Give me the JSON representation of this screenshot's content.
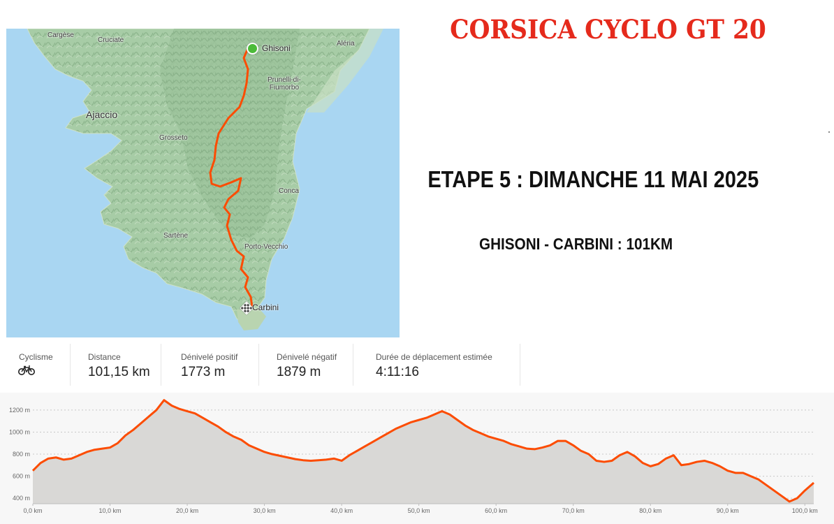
{
  "title": "CORSICA CYCLO GT 20",
  "stage": "ETAPE 5 : DIMANCHE 11 MAI 2025",
  "route": "GHISONI - CARBINI : 101KM",
  "map": {
    "start": "Ghisoni",
    "finish": "Carbini",
    "places": [
      "Cargèse",
      "Cruciate",
      "Aléria",
      "Prunelli-di-\nFiumorbo",
      "Ajaccio",
      "Grosseto",
      "Conca",
      "Sartène",
      "Porto-Vecchio"
    ],
    "colors": {
      "route": "#fc4c02",
      "sea": "#a9d6f2",
      "land": "#9fc6a1"
    }
  },
  "stats": {
    "activity_label": "Cyclisme",
    "activity_icon": "bike-icon",
    "distance_label": "Distance",
    "distance_value": "101,15 km",
    "gain_label": "Dénivelé positif",
    "gain_value": "1773 m",
    "loss_label": "Dénivelé négatif",
    "loss_value": "1879 m",
    "duration_label": "Durée de déplacement estimée",
    "duration_value": "4:11:16"
  },
  "chart_data": {
    "type": "area",
    "xlabel": "",
    "ylabel": "",
    "xlim": [
      0,
      101.15
    ],
    "ylim": [
      350,
      1320
    ],
    "x_ticks": [
      "0,0 km",
      "10,0 km",
      "20,0 km",
      "30,0 km",
      "40,0 km",
      "50,0 km",
      "60,0 km",
      "70,0 km",
      "80,0 km",
      "90,0 km",
      "100,0 km"
    ],
    "y_ticks": [
      "400 m",
      "600 m",
      "800 m",
      "1000 m",
      "1200 m"
    ],
    "grid": true,
    "color": "#fc4c02",
    "fill": "#d9d8d6",
    "series": [
      {
        "x": [
          0,
          1,
          2,
          3,
          4,
          5,
          6,
          7,
          8,
          9,
          10,
          11,
          12,
          13,
          14,
          15,
          16,
          17,
          18,
          19,
          20,
          21,
          22,
          23,
          24,
          25,
          26,
          27,
          28,
          29,
          30,
          31,
          32,
          33,
          34,
          35,
          36,
          37,
          38,
          39,
          40,
          41,
          42,
          43,
          44,
          45,
          46,
          47,
          48,
          49,
          50,
          51,
          52,
          53,
          54,
          55,
          56,
          57,
          58,
          59,
          60,
          61,
          62,
          63,
          64,
          65,
          66,
          67,
          68,
          69,
          70,
          71,
          72,
          73,
          74,
          75,
          76,
          77,
          78,
          79,
          80,
          81,
          82,
          83,
          84,
          85,
          86,
          87,
          88,
          89,
          90,
          91,
          92,
          93,
          94,
          95,
          96,
          97,
          98,
          99,
          100,
          101.15
        ],
        "y": [
          650,
          720,
          760,
          770,
          750,
          760,
          790,
          820,
          840,
          850,
          860,
          900,
          970,
          1020,
          1080,
          1140,
          1200,
          1290,
          1240,
          1210,
          1190,
          1170,
          1130,
          1090,
          1050,
          1000,
          960,
          930,
          880,
          850,
          820,
          800,
          785,
          770,
          755,
          745,
          740,
          745,
          750,
          760,
          740,
          790,
          830,
          870,
          910,
          950,
          990,
          1030,
          1060,
          1090,
          1110,
          1130,
          1160,
          1190,
          1160,
          1110,
          1060,
          1020,
          990,
          960,
          940,
          920,
          890,
          870,
          850,
          845,
          860,
          880,
          920,
          920,
          880,
          830,
          800,
          740,
          730,
          740,
          790,
          820,
          780,
          720,
          690,
          710,
          760,
          790,
          700,
          710,
          730,
          740,
          720,
          690,
          650,
          630,
          630,
          600,
          570,
          520,
          470,
          420,
          370,
          400,
          470,
          540
        ]
      }
    ]
  }
}
